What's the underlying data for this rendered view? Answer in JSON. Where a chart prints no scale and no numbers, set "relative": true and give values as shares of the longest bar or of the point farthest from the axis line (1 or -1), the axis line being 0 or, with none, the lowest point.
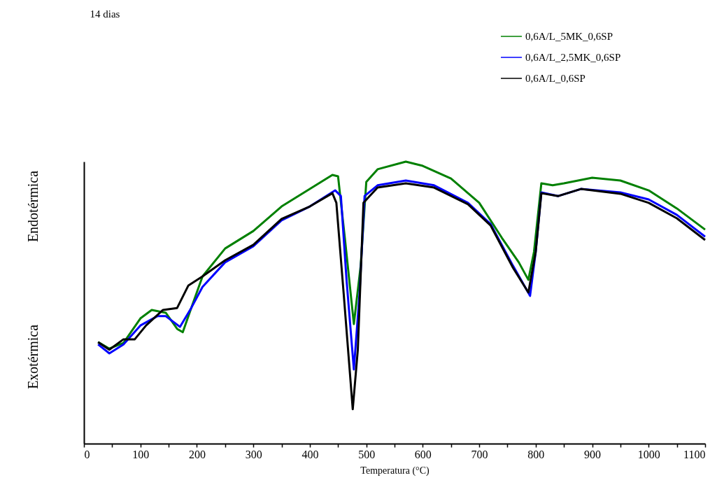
{
  "chart_data": {
    "type": "line",
    "xlabel": "Temperatura (°C)",
    "relative": true,
    "grid": false,
    "legend": "top right",
    "tick_labels": "x",
    "marker": "none",
    "line_style": "solid",
    "xlim": [
      0,
      1100
    ],
    "xticks": [
      0,
      {
        "value": 50,
        "label": null
      },
      100,
      {
        "value": 150,
        "label": null
      },
      200,
      {
        "value": 250,
        "label": null
      },
      300,
      {
        "value": 350,
        "label": null
      },
      400,
      {
        "value": 450,
        "label": null
      },
      500,
      {
        "value": 550,
        "label": null
      },
      600,
      {
        "value": 650,
        "label": null
      },
      700,
      {
        "value": 750,
        "label": null
      },
      800,
      {
        "value": 850,
        "label": null
      },
      900,
      {
        "value": 950,
        "label": null
      },
      1000,
      {
        "value": 1050,
        "label": null
      },
      1100
    ],
    "annotations": [
      "14 dias",
      "Endotérmica",
      "Exotérmica"
    ],
    "series": [
      {
        "name": "0,6A/L_5MK_0,6SP",
        "color": "#008000",
        "x": [
          25,
          45,
          70,
          100,
          120,
          145,
          165,
          175,
          190,
          210,
          250,
          300,
          350,
          400,
          440,
          450,
          462,
          478,
          490,
          500,
          520,
          570,
          600,
          650,
          700,
          740,
          770,
          787,
          797,
          810,
          830,
          850,
          900,
          950,
          1000,
          1050,
          1100
        ],
        "values": [
          0.36,
          0.337,
          0.357,
          0.444,
          0.474,
          0.464,
          0.407,
          0.395,
          0.481,
          0.593,
          0.692,
          0.754,
          0.841,
          0.903,
          0.953,
          0.948,
          0.73,
          0.424,
          0.63,
          0.928,
          0.973,
          1,
          0.985,
          0.94,
          0.854,
          0.73,
          0.643,
          0.581,
          0.68,
          0.923,
          0.916,
          0.923,
          0.943,
          0.933,
          0.898,
          0.834,
          0.759
        ]
      },
      {
        "name": "0,6A/L_2,5MK_0,6SP",
        "color": "#0000ff",
        "x": [
          25,
          45,
          70,
          100,
          130,
          145,
          170,
          190,
          210,
          250,
          300,
          350,
          400,
          445,
          455,
          465,
          478,
          488,
          497,
          520,
          570,
          620,
          680,
          720,
          760,
          790,
          800,
          810,
          840,
          880,
          950,
          1000,
          1050,
          1100
        ],
        "values": [
          0.352,
          0.32,
          0.352,
          0.419,
          0.452,
          0.452,
          0.414,
          0.481,
          0.556,
          0.643,
          0.7,
          0.792,
          0.841,
          0.898,
          0.878,
          0.581,
          0.263,
          0.531,
          0.878,
          0.916,
          0.933,
          0.916,
          0.854,
          0.779,
          0.63,
          0.524,
          0.68,
          0.891,
          0.878,
          0.903,
          0.891,
          0.866,
          0.811,
          0.734
        ]
      },
      {
        "name": "0,6A/L_0,6SP",
        "color": "#000000",
        "x": [
          25,
          45,
          70,
          90,
          110,
          140,
          165,
          185,
          210,
          250,
          300,
          350,
          400,
          440,
          447,
          460,
          476,
          485,
          495,
          520,
          570,
          620,
          680,
          720,
          760,
          787,
          800,
          810,
          840,
          880,
          950,
          1000,
          1050,
          1100
        ],
        "values": [
          0.36,
          0.333,
          0.37,
          0.37,
          0.419,
          0.474,
          0.481,
          0.561,
          0.593,
          0.65,
          0.705,
          0.797,
          0.841,
          0.888,
          0.854,
          0.531,
          0.122,
          0.333,
          0.854,
          0.908,
          0.923,
          0.908,
          0.849,
          0.774,
          0.623,
          0.536,
          0.68,
          0.888,
          0.878,
          0.903,
          0.886,
          0.854,
          0.799,
          0.722
        ]
      }
    ]
  }
}
